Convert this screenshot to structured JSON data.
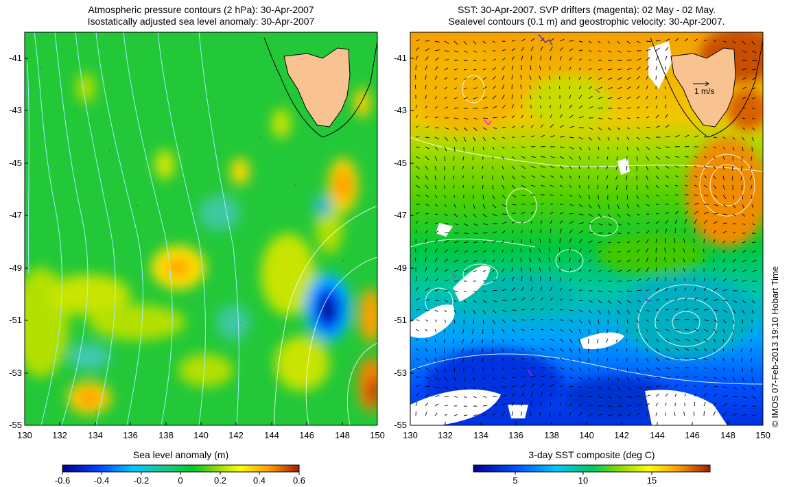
{
  "left_panel": {
    "title_line1": "Atmospheric pressure contours (2 hPa): 30-Apr-2007",
    "title_line2": "Isostatically adjusted sea level anomaly: 30-Apr-2007",
    "colorbar_label": "Sea level anomaly (m)",
    "colorbar_ticks": [
      "-0.6",
      "-0.4",
      "-0.2",
      "0",
      "0.2",
      "0.4",
      "0.6"
    ]
  },
  "right_panel": {
    "title_line1": "SST: 30-Apr-2007. SVP drifters (magenta): 02 May - 02 May.",
    "title_line2": "Sealevel contours (0.1 m) and geostrophic velocity: 30-Apr-2007.",
    "colorbar_label": "3-day SST composite (deg C)",
    "colorbar_ticks": [
      "5",
      "10",
      "15"
    ],
    "velocity_scale_label": "1 m/s"
  },
  "x_ticks": [
    "130",
    "132",
    "134",
    "136",
    "138",
    "140",
    "142",
    "144",
    "146",
    "148",
    "150"
  ],
  "y_ticks": [
    "-41",
    "-43",
    "-45",
    "-47",
    "-49",
    "-51",
    "-53",
    "-55"
  ],
  "credit": "© IMOS 07-Feb-2013 19:10 Hobart Time",
  "colors": {
    "land": "#f9c391",
    "sla_colormap": [
      "#00008f",
      "#0060ff",
      "#00c8ff",
      "#1ec864",
      "#00c832",
      "#8cdc00",
      "#ffff00",
      "#ffa000",
      "#a01e00"
    ],
    "sst_colormap": [
      "#00008f",
      "#0050ff",
      "#00c8ff",
      "#00c864",
      "#8cdc00",
      "#ffff00",
      "#ffa000",
      "#a01e00"
    ],
    "drifter": "#ff00ff",
    "pressure_contour": "#a0f0ff"
  }
}
